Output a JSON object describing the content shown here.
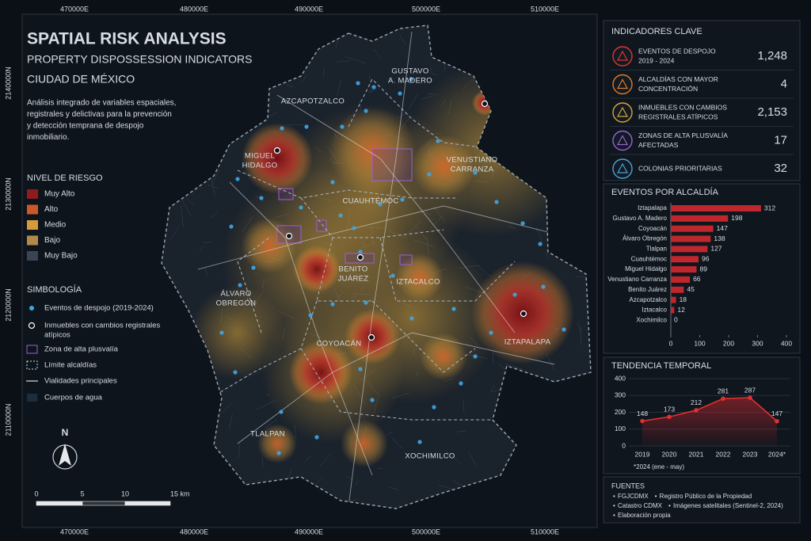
{
  "map": {
    "header": {
      "title": "SPATIAL RISK ANALYSIS",
      "subtitle": "PROPERTY DISPOSSESSION INDICATORS",
      "city": "CIUDAD DE MÉXICO",
      "description": [
        "Análisis integrado de variables espaciales,",
        "registrales y delictivas para la prevención",
        "y detección temprana de despojo",
        "inmobiliario."
      ]
    },
    "coords": {
      "x_labels": [
        "470000E",
        "480000E",
        "490000E",
        "500000E",
        "510000E"
      ],
      "y_labels": [
        "2140000N",
        "2130000N",
        "2120000N",
        "2110000N"
      ]
    },
    "risk_legend": {
      "title": "NIVEL DE RIESGO",
      "items": [
        {
          "label": "Muy Alto",
          "color": "#8e1c1f"
        },
        {
          "label": "Alto",
          "color": "#c9582a"
        },
        {
          "label": "Medio",
          "color": "#d69a3a"
        },
        {
          "label": "Bajo",
          "color": "#b08a4a"
        },
        {
          "label": "Muy Bajo",
          "color": "#3a4452"
        }
      ]
    },
    "symbology": {
      "title": "SIMBOLOGÍA",
      "items": [
        [
          "Eventos de despojo (2019-2024)"
        ],
        [
          "Inmuebles con cambios registrales",
          "atípicos"
        ],
        [
          "Zona de alta plusvalía"
        ],
        [
          "Límite alcaldías"
        ],
        [
          "Vialidades principales"
        ],
        [
          "Cuerpos de agua"
        ]
      ]
    },
    "north": "N",
    "scale": [
      "0",
      "5",
      "10",
      "15 km"
    ],
    "districts": [
      [
        "GUSTAVO",
        "A. MADERO"
      ],
      [
        "AZCAPOTZALCO"
      ],
      [
        "MIGUEL",
        "HIDALGO"
      ],
      [
        "VENUSTIANO",
        "CARRANZA"
      ],
      [
        "CUAUHTÉMOC"
      ],
      [
        "BENITO",
        "JUÁREZ"
      ],
      [
        "IZTACALCO"
      ],
      [
        "ÁLVARO",
        "OBREGÓN"
      ],
      [
        "COYOACÁN"
      ],
      [
        "IZTAPALAPA"
      ],
      [
        "TLALPAN"
      ],
      [
        "XOCHIMILCO"
      ]
    ]
  },
  "indicators": {
    "title": "INDICADORES CLAVE",
    "items": [
      {
        "label": [
          "EVENTOS DE DESPOJO",
          "2019 - 2024"
        ],
        "value": "1,248",
        "color": "#e0352f"
      },
      {
        "label": [
          "ALCALDÍAS CON MAYOR",
          "CONCENTRACIÓN"
        ],
        "value": "4",
        "color": "#e07a2a"
      },
      {
        "label": [
          "INMUEBLES CON CAMBIOS",
          "REGISTRALES ATÍPICOS"
        ],
        "value": "2,153",
        "color": "#d9a437"
      },
      {
        "label": [
          "ZONAS DE ALTA PLUSVALÍA",
          "AFECTADAS"
        ],
        "value": "17",
        "color": "#9b5fd6"
      },
      {
        "label": [
          "COLONIAS PRIORITARIAS"
        ],
        "value": "32",
        "color": "#4aa3d8"
      }
    ]
  },
  "chart_data": [
    {
      "type": "bar",
      "orientation": "horizontal",
      "title": "EVENTOS POR ALCALDÍA",
      "categories": [
        "Iztapalapa",
        "Gustavo A. Madero",
        "Coyoacán",
        "Álvaro Obregón",
        "Tlalpan",
        "Cuauhtémoc",
        "Miguel Hidalgo",
        "Venustiano Carranza",
        "Benito Juárez",
        "Azcapotzalco",
        "Iztacalco",
        "Xochimilco"
      ],
      "values": [
        312,
        198,
        147,
        138,
        127,
        96,
        89,
        66,
        45,
        18,
        12,
        0
      ],
      "color": "#c0272d",
      "xlim": [
        0,
        400
      ],
      "xticks": [
        0,
        100,
        200,
        300,
        400
      ]
    },
    {
      "type": "line",
      "title": "TENDENCIA TEMPORAL",
      "categories": [
        "2019",
        "2020",
        "2021",
        "2022",
        "2023",
        "2024*"
      ],
      "values": [
        148,
        173,
        212,
        281,
        287,
        147
      ],
      "color": "#e0302e",
      "ylim": [
        0,
        400
      ],
      "yticks": [
        0,
        100,
        200,
        300,
        400
      ],
      "note": "*2024 (ene - may)"
    }
  ],
  "sources": {
    "title": "FUENTES",
    "rows": [
      [
        "FGJCDMX",
        "Registro Público de la Propiedad"
      ],
      [
        "Catastro CDMX",
        "Imágenes satelitales (Sentinel-2, 2024)"
      ],
      [
        "Elaboración propia"
      ]
    ]
  }
}
